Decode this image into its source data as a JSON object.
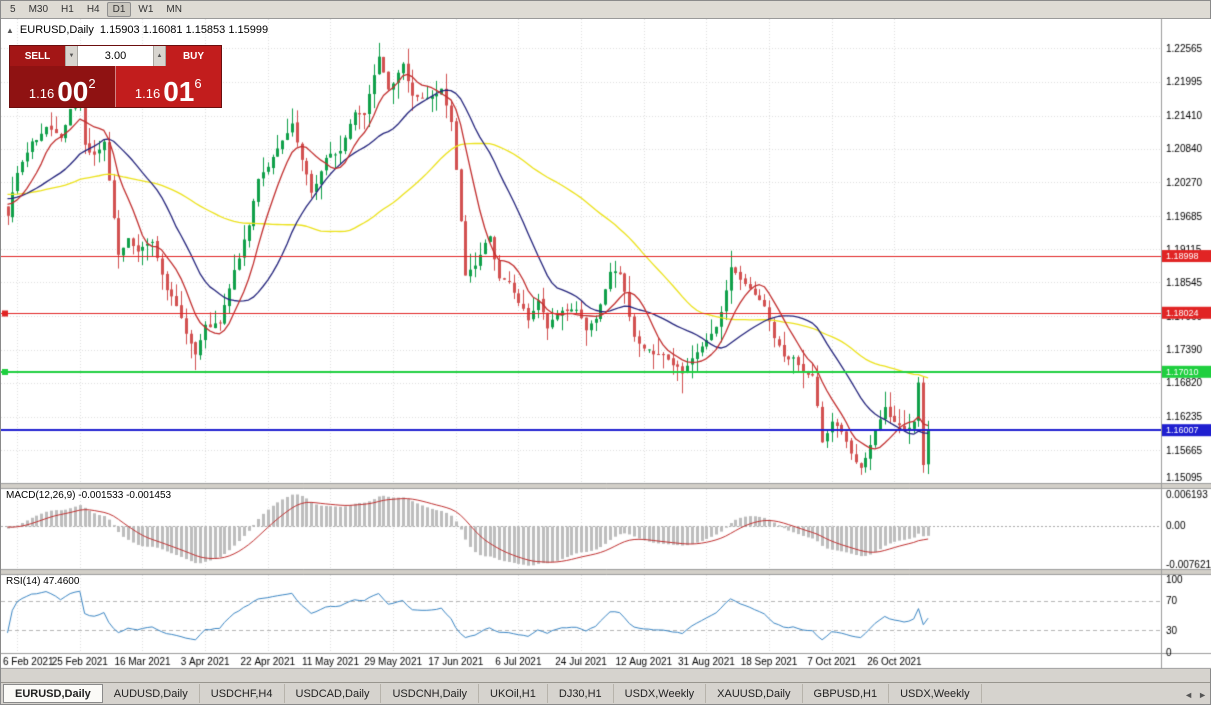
{
  "toolbar": {
    "periods": [
      "5",
      "M30",
      "H1",
      "H4",
      "D1",
      "W1",
      "MN"
    ],
    "active_index": 4
  },
  "header": {
    "collapse_icon": "▲",
    "title": "EURUSD,Daily",
    "ohlc": "1.15903 1.16081 1.15853 1.15999"
  },
  "trade_panel": {
    "sell_label": "SELL",
    "buy_label": "BUY",
    "volume": "3.00",
    "spin_up_icon": "▲",
    "spin_down_icon": "▼",
    "bid": {
      "big": "1.16",
      "pips": "00",
      "frac": "2"
    },
    "ask": {
      "big": "1.16",
      "pips": "01",
      "frac": "6"
    }
  },
  "indicators": {
    "macd_label": "MACD(12,26,9) -0.001533 -0.001453",
    "rsi_label": "RSI(14) 47.4600"
  },
  "price_axis": {
    "ticks": [
      "1.22565",
      "1.21995",
      "1.21410",
      "1.20840",
      "1.20270",
      "1.19685",
      "1.19115",
      "1.18545",
      "1.17960",
      "1.17390",
      "1.16820",
      "1.16235",
      "1.15665",
      "1.15095"
    ]
  },
  "macd_axis": {
    "ticks": [
      "0.006193",
      "0.00",
      "-0.007621"
    ]
  },
  "rsi_axis": {
    "ticks": [
      "100",
      "70",
      "30",
      "0"
    ]
  },
  "date_axis": [
    {
      "label": "6 Feb 2021",
      "i": 2
    },
    {
      "label": "25 Feb 2021",
      "i": 15
    },
    {
      "label": "16 Mar 2021",
      "i": 28
    },
    {
      "label": "3 Apr 2021",
      "i": 41
    },
    {
      "label": "22 Apr 2021",
      "i": 54
    },
    {
      "label": "11 May 2021",
      "i": 67
    },
    {
      "label": "29 May 2021",
      "i": 80
    },
    {
      "label": "17 Jun 2021",
      "i": 93
    },
    {
      "label": "6 Jul 2021",
      "i": 106
    },
    {
      "label": "24 Jul 2021",
      "i": 119
    },
    {
      "label": "12 Aug 2021",
      "i": 132
    },
    {
      "label": "31 Aug 2021",
      "i": 145
    },
    {
      "label": "18 Sep 2021",
      "i": 158
    },
    {
      "label": "7 Oct 2021",
      "i": 171
    },
    {
      "label": "26 Oct 2021",
      "i": 184
    }
  ],
  "hlines": [
    {
      "label": "1.18998",
      "price": 1.18998,
      "color": "#e12424",
      "width": 1,
      "marker": false
    },
    {
      "label": "1.18024",
      "price": 1.18024,
      "color": "#e12424",
      "width": 1,
      "marker": true
    },
    {
      "label": "1.17010",
      "price": 1.1701,
      "color": "#1fcf3f",
      "width": 2,
      "marker": true
    },
    {
      "label": "1.16007",
      "price": 1.16007,
      "color": "#1f1fd0",
      "width": 2,
      "marker": false
    }
  ],
  "tabs": [
    {
      "label": "EURUSD,Daily",
      "active": true
    },
    {
      "label": "AUDUSD,Daily"
    },
    {
      "label": "USDCHF,H4"
    },
    {
      "label": "USDCAD,Daily"
    },
    {
      "label": "USDCNH,Daily"
    },
    {
      "label": "UKOil,H1"
    },
    {
      "label": "DJ30,H1"
    },
    {
      "label": "USDX,Weekly"
    },
    {
      "label": "XAUUSD,Daily"
    },
    {
      "label": "GBPUSD,H1"
    },
    {
      "label": "USDX,Weekly"
    }
  ],
  "tab_nav": {
    "left": "◄",
    "right": "►"
  },
  "chart_data": {
    "type": "candlestick",
    "symbol": "EURUSD",
    "period": "Daily",
    "visible_count": 192,
    "warmup_count": 60,
    "seed": 7,
    "noise": 0.0022,
    "y_range": [
      1.151,
      1.2307
    ],
    "macd_range": [
      -0.0085,
      0.0072
    ],
    "up_color": "#10a04a",
    "down_color": "#d25151",
    "ma_lines": [
      {
        "period": 8,
        "color": "#c22f2f"
      },
      {
        "period": 20,
        "color": "#25257d"
      },
      {
        "period": 50,
        "color": "#ece21c"
      }
    ],
    "macd": {
      "fast": 12,
      "slow": 26,
      "signal_period": 9,
      "hist_color": "#bdbdbd",
      "signal_color": "#c03030"
    },
    "rsi": {
      "period": 14,
      "color": "#3b86c4",
      "levels": [
        70,
        30
      ]
    },
    "anchors": [
      [
        -60,
        1.196
      ],
      [
        -45,
        1.2035
      ],
      [
        -30,
        1.1995
      ],
      [
        -15,
        1.201
      ],
      [
        -1,
        1.199
      ],
      [
        0,
        1.197
      ],
      [
        2,
        1.204
      ],
      [
        5,
        1.209
      ],
      [
        8,
        1.212
      ],
      [
        11,
        1.2095
      ],
      [
        13,
        1.2145
      ],
      [
        15,
        1.2176
      ],
      [
        16,
        1.2085
      ],
      [
        18,
        1.2075
      ],
      [
        20,
        1.2095
      ],
      [
        23,
        1.1895
      ],
      [
        25,
        1.1925
      ],
      [
        27,
        1.1905
      ],
      [
        30,
        1.1925
      ],
      [
        33,
        1.185
      ],
      [
        36,
        1.179
      ],
      [
        39,
        1.173
      ],
      [
        41,
        1.1775
      ],
      [
        44,
        1.178
      ],
      [
        47,
        1.187
      ],
      [
        50,
        1.195
      ],
      [
        52,
        1.2035
      ],
      [
        56,
        1.208
      ],
      [
        59,
        1.212
      ],
      [
        61,
        1.206
      ],
      [
        63,
        1.2005
      ],
      [
        66,
        1.2065
      ],
      [
        69,
        1.208
      ],
      [
        72,
        1.215
      ],
      [
        74,
        1.2145
      ],
      [
        77,
        1.225
      ],
      [
        79,
        1.2195
      ],
      [
        82,
        1.2225
      ],
      [
        84,
        1.218
      ],
      [
        87,
        1.217
      ],
      [
        90,
        1.2185
      ],
      [
        92,
        1.2125
      ],
      [
        93,
        1.2045
      ],
      [
        95,
        1.1865
      ],
      [
        97,
        1.1885
      ],
      [
        100,
        1.1937
      ],
      [
        102,
        1.186
      ],
      [
        104,
        1.185
      ],
      [
        106,
        1.182
      ],
      [
        108,
        1.179
      ],
      [
        110,
        1.1825
      ],
      [
        112,
        1.1775
      ],
      [
        115,
        1.1805
      ],
      [
        118,
        1.181
      ],
      [
        120,
        1.177
      ],
      [
        122,
        1.1785
      ],
      [
        125,
        1.187
      ],
      [
        127,
        1.1865
      ],
      [
        128,
        1.1835
      ],
      [
        130,
        1.176
      ],
      [
        132,
        1.174
      ],
      [
        134,
        1.173
      ],
      [
        136,
        1.1735
      ],
      [
        138,
        1.171
      ],
      [
        140,
        1.1697
      ],
      [
        142,
        1.173
      ],
      [
        144,
        1.174
      ],
      [
        147,
        1.177
      ],
      [
        149,
        1.1835
      ],
      [
        150,
        1.188
      ],
      [
        152,
        1.186
      ],
      [
        154,
        1.184
      ],
      [
        157,
        1.181
      ],
      [
        159,
        1.176
      ],
      [
        161,
        1.1726
      ],
      [
        163,
        1.1725
      ],
      [
        165,
        1.17
      ],
      [
        167,
        1.169
      ],
      [
        169,
        1.158
      ],
      [
        171,
        1.162
      ],
      [
        173,
        1.16
      ],
      [
        175,
        1.1555
      ],
      [
        177,
        1.153
      ],
      [
        179,
        1.1575
      ],
      [
        181,
        1.1615
      ],
      [
        182,
        1.1635
      ],
      [
        184,
        1.161
      ],
      [
        186,
        1.1593
      ],
      [
        188,
        1.162
      ],
      [
        189,
        1.1682
      ],
      [
        190,
        1.1545
      ],
      [
        191,
        1.15999
      ]
    ],
    "key_extremes": [
      {
        "i": 15,
        "high": 1.2243
      },
      {
        "i": 39,
        "low": 1.1704
      },
      {
        "i": 77,
        "high": 1.2266
      },
      {
        "i": 140,
        "low": 1.1664
      },
      {
        "i": 150,
        "high": 1.1909
      },
      {
        "i": 177,
        "low": 1.1524
      },
      {
        "i": 189,
        "high": 1.1692
      },
      {
        "i": 190,
        "low": 1.1528
      }
    ],
    "last_close": 1.15999
  }
}
